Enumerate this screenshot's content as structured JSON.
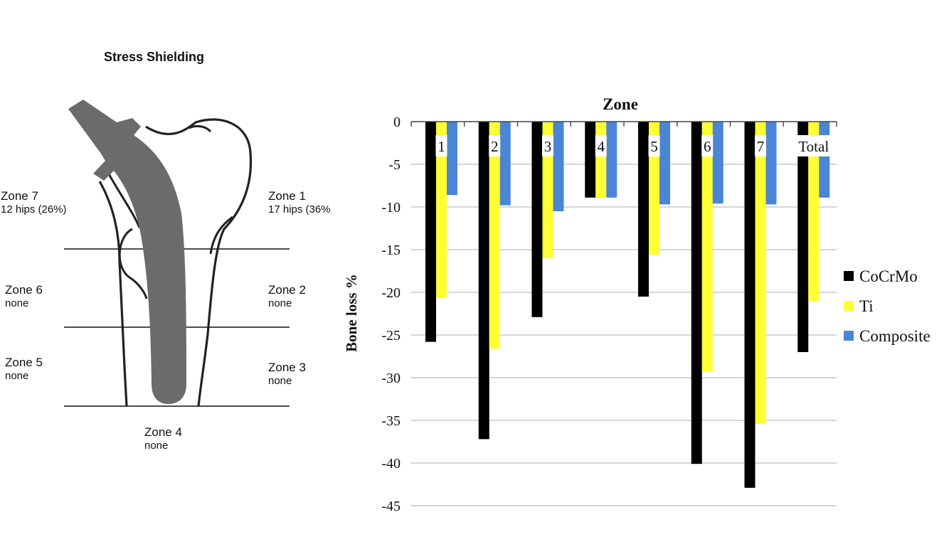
{
  "diagram": {
    "title": "Stress Shielding",
    "zones": [
      {
        "id": "zone-7",
        "name": "Zone 7",
        "value": "12 hips (26%)"
      },
      {
        "id": "zone-1",
        "name": "Zone 1",
        "value": "17 hips (36%"
      },
      {
        "id": "zone-6",
        "name": "Zone 6",
        "value": "none"
      },
      {
        "id": "zone-2",
        "name": "Zone 2",
        "value": "none"
      },
      {
        "id": "zone-5",
        "name": "Zone 5",
        "value": "none"
      },
      {
        "id": "zone-3",
        "name": "Zone 3",
        "value": "none"
      },
      {
        "id": "zone-4",
        "name": "Zone 4",
        "value": "none"
      }
    ],
    "colors": {
      "stem": "#6b6b6b",
      "bone_outline": "#222222"
    }
  },
  "chart_data": {
    "type": "bar",
    "title": "Zone",
    "ylabel": "Bone  loss  %",
    "categories": [
      "1",
      "2",
      "3",
      "4",
      "5",
      "6",
      "7",
      "Total"
    ],
    "series": [
      {
        "name": "CoCrMo",
        "color": "#000000",
        "values": [
          -25.8,
          -37.2,
          -22.9,
          -8.9,
          -20.5,
          -40.1,
          -42.9,
          -27.0
        ]
      },
      {
        "name": "Ti",
        "color": "#ffff33",
        "values": [
          -20.6,
          -26.6,
          -16.0,
          -8.9,
          -15.6,
          -29.3,
          -35.4,
          -21.0
        ]
      },
      {
        "name": "Composite",
        "color": "#4a86d4",
        "values": [
          -8.6,
          -9.8,
          -10.5,
          -8.9,
          -9.7,
          -9.6,
          -9.7,
          -8.9
        ]
      }
    ],
    "ylim": [
      -45,
      0
    ],
    "yticks": [
      0,
      -5,
      -10,
      -15,
      -20,
      -25,
      -30,
      -35,
      -40,
      -45
    ],
    "grid": true,
    "legend": "right"
  }
}
